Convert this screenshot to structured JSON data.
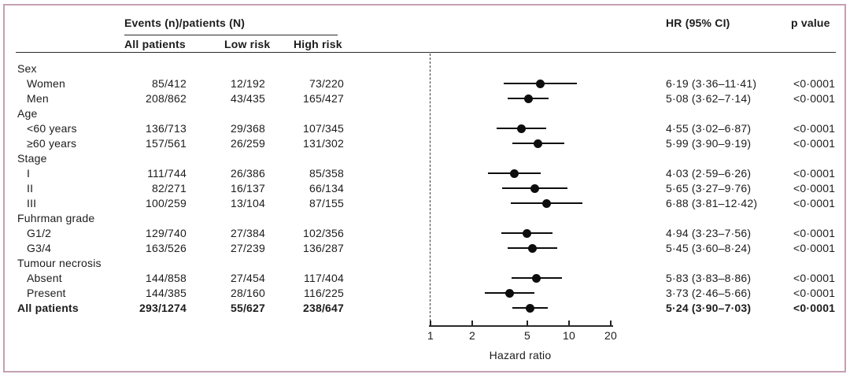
{
  "figure": {
    "border_color": "#c6a0b2",
    "header": {
      "events_group": "Events (n)/patients (N)",
      "col_all_patients": "All patients",
      "col_low_risk": "Low risk",
      "col_high_risk": "High risk",
      "col_hr": "HR (95% CI)",
      "col_p": "p value"
    }
  },
  "chart_data": {
    "type": "forest",
    "xlabel": "Hazard ratio",
    "x_scale": "log",
    "x_ticks": [
      1,
      2,
      5,
      10,
      20
    ],
    "x_range": [
      1,
      20
    ],
    "reference_line": 1,
    "marker_color": "#0d0d0d",
    "rows": [
      {
        "label": "Sex",
        "type": "group"
      },
      {
        "label": "Women",
        "type": "item",
        "all_patients": "85/412",
        "low_risk": "12/192",
        "high_risk": "73/220",
        "hr": 6.19,
        "ci_low": 3.36,
        "ci_high": 11.41,
        "hr_text": "6·19 (3·36–11·41)",
        "p": "<0·0001"
      },
      {
        "label": "Men",
        "type": "item",
        "all_patients": "208/862",
        "low_risk": "43/435",
        "high_risk": "165/427",
        "hr": 5.08,
        "ci_low": 3.62,
        "ci_high": 7.14,
        "hr_text": "5·08 (3·62–7·14)",
        "p": "<0·0001"
      },
      {
        "label": "Age",
        "type": "group"
      },
      {
        "label": "<60 years",
        "type": "item",
        "all_patients": "136/713",
        "low_risk": "29/368",
        "high_risk": "107/345",
        "hr": 4.55,
        "ci_low": 3.02,
        "ci_high": 6.87,
        "hr_text": "4·55 (3·02–6·87)",
        "p": "<0·0001"
      },
      {
        "label": "≥60 years",
        "type": "item",
        "all_patients": "157/561",
        "low_risk": "26/259",
        "high_risk": "131/302",
        "hr": 5.99,
        "ci_low": 3.9,
        "ci_high": 9.19,
        "hr_text": "5·99 (3·90–9·19)",
        "p": "<0·0001"
      },
      {
        "label": "Stage",
        "type": "group"
      },
      {
        "label": "I",
        "type": "item",
        "all_patients": "111/744",
        "low_risk": "26/386",
        "high_risk": "85/358",
        "hr": 4.03,
        "ci_low": 2.59,
        "ci_high": 6.26,
        "hr_text": "4·03 (2·59–6·26)",
        "p": "<0·0001"
      },
      {
        "label": "II",
        "type": "item",
        "all_patients": "82/271",
        "low_risk": "16/137",
        "high_risk": "66/134",
        "hr": 5.65,
        "ci_low": 3.27,
        "ci_high": 9.76,
        "hr_text": "5·65 (3·27–9·76)",
        "p": "<0·0001"
      },
      {
        "label": "III",
        "type": "item",
        "all_patients": "100/259",
        "low_risk": "13/104",
        "high_risk": "87/155",
        "hr": 6.88,
        "ci_low": 3.81,
        "ci_high": 12.42,
        "hr_text": "6·88 (3·81–12·42)",
        "p": "<0·0001"
      },
      {
        "label": "Fuhrman grade",
        "type": "group"
      },
      {
        "label": "G1/2",
        "type": "item",
        "all_patients": "129/740",
        "low_risk": "27/384",
        "high_risk": "102/356",
        "hr": 4.94,
        "ci_low": 3.23,
        "ci_high": 7.56,
        "hr_text": "4·94 (3·23–7·56)",
        "p": "<0·0001"
      },
      {
        "label": "G3/4",
        "type": "item",
        "all_patients": "163/526",
        "low_risk": "27/239",
        "high_risk": "136/287",
        "hr": 5.45,
        "ci_low": 3.6,
        "ci_high": 8.24,
        "hr_text": "5·45 (3·60–8·24)",
        "p": "<0·0001"
      },
      {
        "label": "Tumour necrosis",
        "type": "group"
      },
      {
        "label": "Absent",
        "type": "item",
        "all_patients": "144/858",
        "low_risk": "27/454",
        "high_risk": "117/404",
        "hr": 5.83,
        "ci_low": 3.83,
        "ci_high": 8.86,
        "hr_text": "5·83 (3·83–8·86)",
        "p": "<0·0001"
      },
      {
        "label": "Present",
        "type": "item",
        "all_patients": "144/385",
        "low_risk": "28/160",
        "high_risk": "116/225",
        "hr": 3.73,
        "ci_low": 2.46,
        "ci_high": 5.66,
        "hr_text": "3·73 (2·46–5·66)",
        "p": "<0·0001"
      },
      {
        "label": "All patients",
        "type": "total",
        "all_patients": "293/1274",
        "low_risk": "55/627",
        "high_risk": "238/647",
        "hr": 5.24,
        "ci_low": 3.9,
        "ci_high": 7.03,
        "hr_text": "5·24 (3·90–7·03)",
        "p": "<0·0001"
      }
    ]
  }
}
